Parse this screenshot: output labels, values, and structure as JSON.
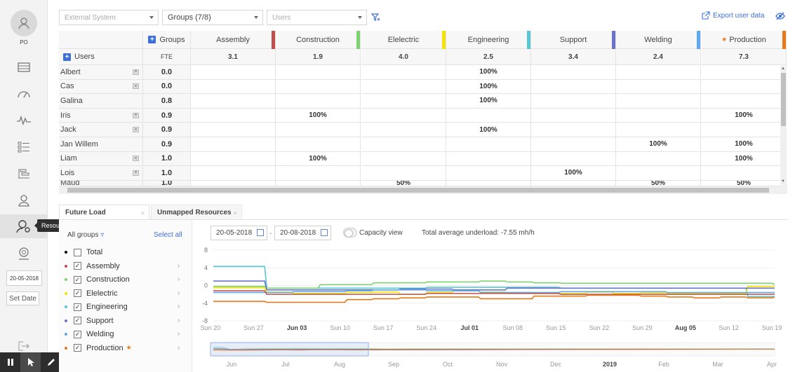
{
  "user": {
    "initials": "PO"
  },
  "tooltip": "Resource management",
  "nav": {
    "date": "20-05-2018",
    "set_date_label": "Set Date"
  },
  "filters": {
    "external_system_placeholder": "External System",
    "groups_label": "Groups (7/8)",
    "users_placeholder": "Users"
  },
  "export_label": "Export user data",
  "table": {
    "groups_label": "Groups",
    "users_label": "Users",
    "fte_label": "FTE",
    "columns": [
      {
        "name": "Assembly",
        "color": "#c0504d",
        "fte": "3.1"
      },
      {
        "name": "Construction",
        "color": "#7dd36f",
        "fte": "1.9"
      },
      {
        "name": "Elelectric",
        "color": "#f5e400",
        "fte": "4.0"
      },
      {
        "name": "Engineering",
        "color": "#56c7d3",
        "fte": "2.5"
      },
      {
        "name": "Support",
        "color": "#6b74c9",
        "fte": "3.4"
      },
      {
        "name": "Welding",
        "color": "#5eaaf0",
        "fte": "2.4"
      },
      {
        "name": "Production",
        "color": "#e8781a",
        "fte": "7.3",
        "starred": true
      }
    ],
    "rows": [
      {
        "name": "Albert",
        "x": true,
        "fte": "0.0",
        "vals": [
          "",
          "",
          "",
          "100%",
          "",
          "",
          ""
        ]
      },
      {
        "name": "Cas",
        "x": true,
        "fte": "0.0",
        "vals": [
          "",
          "",
          "",
          "100%",
          "",
          "",
          ""
        ]
      },
      {
        "name": "Galina",
        "x": false,
        "fte": "0.8",
        "vals": [
          "",
          "",
          "",
          "100%",
          "",
          "",
          ""
        ]
      },
      {
        "name": "Iris",
        "x": true,
        "fte": "0.9",
        "vals": [
          "",
          "100%",
          "",
          "",
          "",
          "",
          "100%"
        ]
      },
      {
        "name": "Jack",
        "x": true,
        "fte": "0.9",
        "vals": [
          "",
          "",
          "",
          "100%",
          "",
          "",
          ""
        ]
      },
      {
        "name": "Jan Willem",
        "x": false,
        "fte": "0.9",
        "vals": [
          "",
          "",
          "",
          "",
          "",
          "100%",
          "100%"
        ]
      },
      {
        "name": "Liam",
        "x": true,
        "fte": "1.0",
        "vals": [
          "",
          "100%",
          "",
          "",
          "",
          "",
          "100%"
        ]
      },
      {
        "name": "Lois",
        "x": true,
        "fte": "1.0",
        "vals": [
          "",
          "",
          "",
          "",
          "100%",
          "",
          ""
        ]
      },
      {
        "name": "Maud",
        "x": false,
        "fte": "1.0",
        "vals": [
          "",
          "",
          "50%",
          "",
          "",
          "50%",
          "50%"
        ]
      }
    ]
  },
  "tabs": {
    "future_load": "Future Load",
    "unmapped": "Unmapped Resources"
  },
  "groups_panel": {
    "all_groups_label": "All groups",
    "select_all_label": "Select all",
    "items": [
      {
        "name": "Total",
        "color": "#000000",
        "checked": false
      },
      {
        "name": "Assembly",
        "color": "#c0504d",
        "checked": true
      },
      {
        "name": "Construction",
        "color": "#7dd36f",
        "checked": true
      },
      {
        "name": "Elelectric",
        "color": "#f5e400",
        "checked": true
      },
      {
        "name": "Engineering",
        "color": "#56c7d3",
        "checked": true
      },
      {
        "name": "Support",
        "color": "#6b74c9",
        "checked": true
      },
      {
        "name": "Welding",
        "color": "#5eaaf0",
        "checked": true
      },
      {
        "name": "Production",
        "color": "#e8781a",
        "checked": true,
        "starred": true
      }
    ]
  },
  "controls": {
    "date_from": "20-05-2018",
    "date_to": "20-08-2018",
    "capacity_view_label": "Capacity view",
    "underload_text": "Total average underload: -7.55 mh/h"
  },
  "chart_data": {
    "type": "line",
    "y_ticks": [
      "8",
      "4",
      "0",
      "-4",
      "-8"
    ],
    "ylim": [
      -8,
      8
    ],
    "x_ticks": [
      "Sun 20",
      "Sun 27",
      "Jun 03",
      "Sun 10",
      "Sun 17",
      "Sun 24",
      "Jul 01",
      "Sun 08",
      "Sun 15",
      "Sun 22",
      "Sun 29",
      "Aug 05",
      "Sun 12",
      "Sun 19"
    ],
    "x_ticks_bold": [
      false,
      false,
      true,
      false,
      false,
      false,
      true,
      false,
      false,
      false,
      false,
      true,
      false,
      false
    ],
    "series": [
      {
        "color": "#56c7d3",
        "values": [
          4.3,
          4.3,
          -0.6,
          -0.6,
          -0.6,
          -0.6,
          -0.6,
          -0.6,
          -0.4,
          -0.4,
          -0.4,
          -0.4,
          -0.4,
          -0.6,
          -0.6,
          -0.6,
          -0.6,
          -0.6,
          -0.6,
          -0.6,
          -2.5,
          -2.5
        ]
      },
      {
        "color": "#7dd36f",
        "values": [
          -0.2,
          -0.2,
          -0.6,
          -0.6,
          0.2,
          0.2,
          0.6,
          0.6,
          0.8,
          0.8,
          1.0,
          0.8,
          0.6,
          0.5,
          0.5,
          0.5,
          0.5,
          0.5,
          0.5,
          0.5,
          0.5,
          0.2
        ]
      },
      {
        "color": "#f5e400",
        "values": [
          -0.5,
          -0.5,
          -1.5,
          -1.8,
          -1.8,
          -1.6,
          -1.5,
          -2.0,
          -1.6,
          -1.2,
          -1.5,
          -1.6,
          -1.8,
          -1.8,
          -1.5,
          -1.8,
          -1.7,
          -1.8,
          -1.8,
          -1.8,
          -0.2,
          -0.2
        ]
      },
      {
        "color": "#6b74c9",
        "values": [
          1.0,
          1.0,
          -1.0,
          -1.0,
          -1.0,
          -1.0,
          -1.0,
          -0.8,
          -0.8,
          -1.0,
          -1.0,
          -0.6,
          -0.6,
          -0.6,
          -0.6,
          -0.6,
          -0.6,
          -0.6,
          -0.6,
          -0.6,
          -0.6,
          -0.6
        ]
      },
      {
        "color": "#5eaaf0",
        "values": [
          -1.6,
          -1.6,
          -1.6,
          -1.4,
          -1.4,
          -1.2,
          -1.0,
          -1.0,
          -1.2,
          -1.2,
          -1.6,
          -1.6,
          -1.6,
          -1.4,
          -1.4,
          -1.4,
          -1.4,
          -1.6,
          -1.6,
          -1.6,
          -1.6,
          -1.6
        ]
      },
      {
        "color": "#c0504d",
        "values": [
          -1.2,
          -1.2,
          -2.0,
          -2.0,
          -2.0,
          -2.0,
          -2.0,
          -2.0,
          -1.8,
          -1.8,
          -1.8,
          -1.8,
          -1.8,
          -2.0,
          -2.0,
          -2.0,
          -2.0,
          -2.0,
          -2.0,
          -2.0,
          -2.0,
          -2.0
        ]
      },
      {
        "color": "#e8781a",
        "values": [
          -3.6,
          -3.6,
          -3.8,
          -3.8,
          -3.8,
          -3.2,
          -3.0,
          -2.8,
          -2.6,
          -2.6,
          -3.0,
          -3.0,
          -2.4,
          -2.4,
          -2.2,
          -2.2,
          -2.4,
          -2.6,
          -2.8,
          -2.6,
          -2.8,
          -2.6
        ]
      }
    ],
    "nav_ticks": [
      "Jun",
      "Jul",
      "Aug",
      "Sep",
      "Oct",
      "Nov",
      "Dec",
      "2019",
      "Feb",
      "Mar",
      "Apr"
    ],
    "nav_ticks_bold": [
      false,
      false,
      false,
      false,
      false,
      false,
      false,
      true,
      false,
      false,
      false
    ]
  }
}
